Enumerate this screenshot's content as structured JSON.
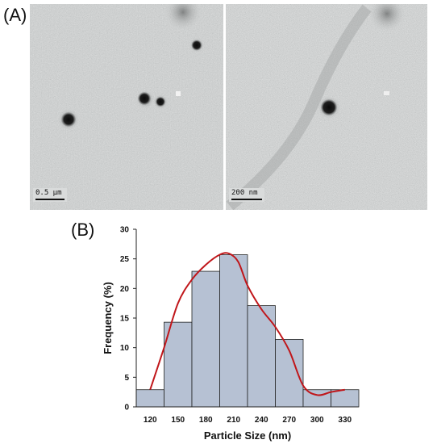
{
  "panel_a": {
    "label": "(A)",
    "left_scalebar": "0.5 µm",
    "right_scalebar": "200 nm"
  },
  "panel_b": {
    "label": "(B)"
  },
  "chart_data": {
    "type": "bar",
    "categories": [
      "120",
      "150",
      "180",
      "210",
      "240",
      "270",
      "300",
      "330"
    ],
    "values": [
      2.9,
      14.3,
      22.9,
      25.7,
      17.1,
      11.4,
      2.9,
      2.9
    ],
    "fit_curve": {
      "x": [
        120,
        135,
        150,
        165,
        180,
        195,
        205,
        215,
        225,
        240,
        255,
        270,
        285,
        300,
        315,
        330
      ],
      "y": [
        2.9,
        10,
        17.5,
        21.5,
        24.0,
        25.7,
        25.9,
        24.5,
        20.5,
        16.5,
        13.5,
        9.5,
        3.6,
        2.0,
        2.5,
        2.9
      ]
    },
    "bar_color": "#b6c1d3",
    "curve_color": "#c0161a",
    "xlabel": "Particle Size (nm)",
    "ylabel": "Frequency (%)",
    "ylim": [
      0,
      30
    ],
    "yticks": [
      "0",
      "5",
      "10",
      "15",
      "20",
      "25",
      "30"
    ],
    "xlim": [
      105,
      345
    ],
    "grid": false
  }
}
